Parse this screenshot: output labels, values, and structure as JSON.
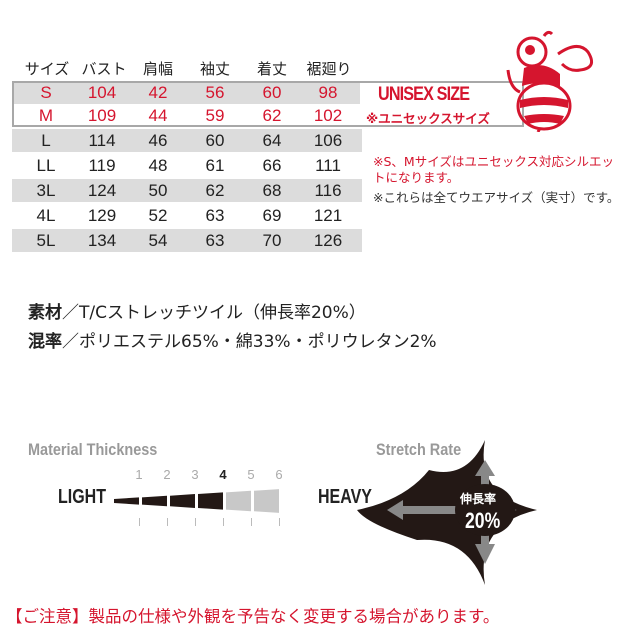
{
  "size_table": {
    "headers": [
      "サイズ",
      "バスト",
      "肩幅",
      "袖丈",
      "着丈",
      "裾廻り"
    ],
    "rows": [
      [
        "S",
        "104",
        "42",
        "56",
        "60",
        "98"
      ],
      [
        "M",
        "109",
        "44",
        "59",
        "62",
        "102"
      ],
      [
        "L",
        "114",
        "46",
        "60",
        "64",
        "106"
      ],
      [
        "LL",
        "119",
        "48",
        "61",
        "66",
        "111"
      ],
      [
        "3L",
        "124",
        "50",
        "62",
        "68",
        "116"
      ],
      [
        "4L",
        "129",
        "52",
        "63",
        "69",
        "121"
      ],
      [
        "5L",
        "134",
        "54",
        "63",
        "70",
        "126"
      ]
    ]
  },
  "unisex": {
    "title": "UNISEX SIZE",
    "subtitle": "※ユニセックスサイズ",
    "logo": "bee-mascot"
  },
  "notes": {
    "unisex_note": "※S、Mサイズはユニセックス対応シルエットになります。",
    "size_note": "※これらは全てウエアサイズ（実寸）です。"
  },
  "material": {
    "label": "素材",
    "value": "／T/Cストレッチツイル（伸長率20%）"
  },
  "blend": {
    "label": "混率",
    "value": "／ポリエステル65%・綿33%・ポリウレタン2%"
  },
  "thickness": {
    "title": "Material Thickness",
    "light": "LIGHT",
    "heavy": "HEAVY",
    "levels": [
      "1",
      "2",
      "3",
      "4",
      "5",
      "6"
    ],
    "value": 4
  },
  "stretch": {
    "title": "Stretch Rate",
    "label": "伸長率",
    "value": "20%"
  },
  "disclaimer": "【ご注意】製品の仕様や外観を予告なく変更する場合があります。",
  "colors": {
    "accent": "#d5152e",
    "gray_row": "#dcdcdc"
  }
}
